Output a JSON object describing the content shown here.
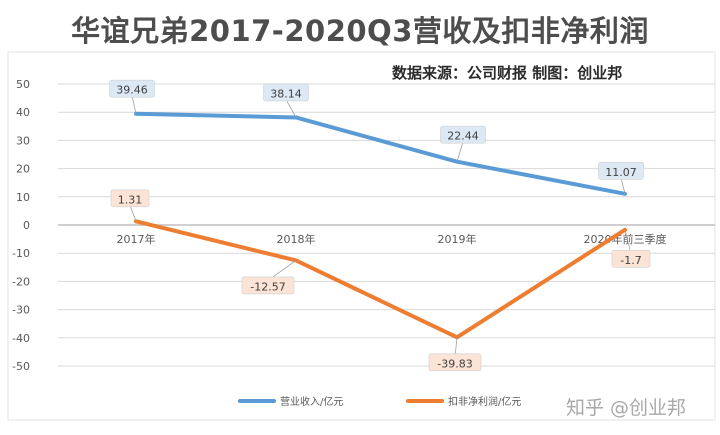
{
  "title": "华谊兄弟2017-2020Q3营收及扣非净利润",
  "source": "数据来源：公司财报 制图：创业邦",
  "watermark": "知乎 @创业邦",
  "colors": {
    "revenue": "#5b9bd5",
    "profit": "#ed7d31",
    "revenue_label_bg": "#dce9f5",
    "profit_label_bg": "#fbe3d6",
    "grid": "#d9d9d9",
    "axis_text": "#595959"
  },
  "chart_data": {
    "type": "line",
    "categories": [
      "2017年",
      "2018年",
      "2019年",
      "2020年前三季度"
    ],
    "series": [
      {
        "name": "营业收入/亿元",
        "values": [
          39.46,
          38.14,
          22.44,
          11.07
        ],
        "labels": [
          "39.46",
          "38.14",
          "22.44",
          "11.07"
        ]
      },
      {
        "name": "扣非净利润/亿元",
        "values": [
          1.31,
          -12.57,
          -39.83,
          -1.7
        ],
        "labels": [
          "1.31",
          "-12.57",
          "-39.83",
          "-1.7"
        ]
      }
    ],
    "ylim": [
      -50,
      50
    ],
    "yticks": [
      50,
      40,
      30,
      20,
      10,
      0,
      -10,
      -20,
      -30,
      -40,
      -50
    ],
    "grid": true,
    "legend": "bottom"
  }
}
